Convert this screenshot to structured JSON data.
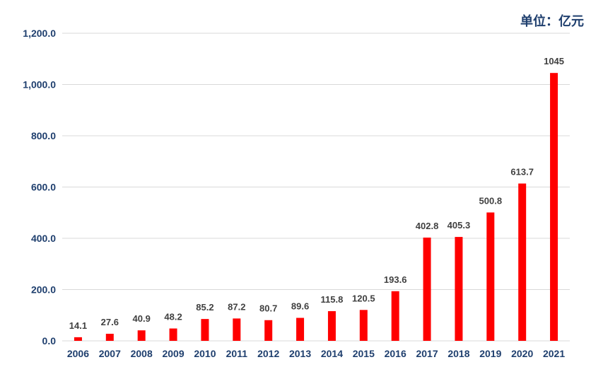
{
  "unit_label": "单位：亿元",
  "colors": {
    "bar": "#ff0000",
    "axis_text": "#1f3f6e",
    "data_label": "#404040",
    "grid": "#d9d9d9"
  },
  "chart_data": {
    "type": "bar",
    "categories": [
      "2006",
      "2007",
      "2008",
      "2009",
      "2010",
      "2011",
      "2012",
      "2013",
      "2014",
      "2015",
      "2016",
      "2017",
      "2018",
      "2019",
      "2020",
      "2021"
    ],
    "values": [
      14.1,
      27.6,
      40.9,
      48.2,
      85.2,
      87.2,
      80.7,
      89.6,
      115.8,
      120.5,
      193.6,
      402.8,
      405.3,
      500.8,
      613.7,
      1045
    ],
    "data_labels": [
      "14.1",
      "27.6",
      "40.9",
      "48.2",
      "85.2",
      "87.2",
      "80.7",
      "89.6",
      "115.8",
      "120.5",
      "193.6",
      "402.8",
      "405.3",
      "500.8",
      "613.7",
      "1045"
    ],
    "y_ticks": [
      0,
      200,
      400,
      600,
      800,
      1000,
      1200
    ],
    "y_tick_labels": [
      "0.0",
      "200.0",
      "400.0",
      "600.0",
      "800.0",
      "1,000.0",
      "1,200.0"
    ],
    "ylim": [
      0,
      1200
    ],
    "grid": true,
    "legend": "none"
  }
}
